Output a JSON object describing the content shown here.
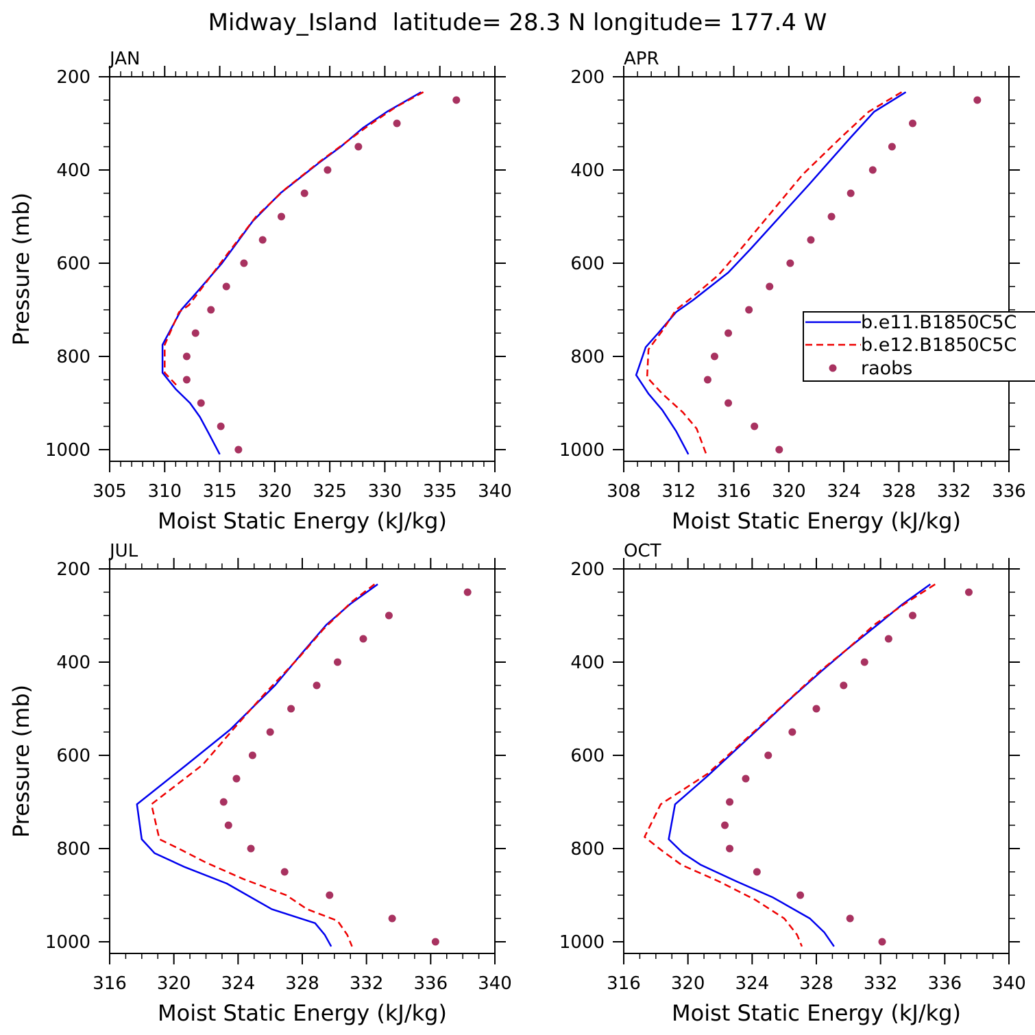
{
  "title": "Midway_Island  latitude= 28.3 N longitude= 177.4 W",
  "colors": {
    "model1": "#0000ee",
    "model2": "#ee0000",
    "obs": "#a83260"
  },
  "legend": {
    "entries": [
      "b.e11.B1850C5C",
      "b.e12.B1850C5C",
      "raobs"
    ],
    "placement": "inside-right of APR panel"
  },
  "chart_data": [
    {
      "type": "line",
      "panel": "JAN",
      "xlabel": "Moist Static Energy (kJ/kg)",
      "ylabel": "Pressure (mb)",
      "xlim": [
        305,
        340
      ],
      "xticks": [
        305,
        310,
        315,
        320,
        325,
        330,
        335,
        340
      ],
      "xminor": 1,
      "ylim": [
        1025,
        200
      ],
      "yticks": [
        200,
        400,
        600,
        800,
        1000
      ],
      "series": [
        {
          "name": "b.e11.B1850C5C",
          "style": "solid",
          "points": [
            [
              333.3,
              233
            ],
            [
              330.2,
              275
            ],
            [
              328,
              310
            ],
            [
              326,
              350
            ],
            [
              324,
              385
            ],
            [
              320.5,
              450
            ],
            [
              318,
              510
            ],
            [
              315.2,
              600
            ],
            [
              313,
              660
            ],
            [
              311.5,
              700
            ],
            [
              309.8,
              775
            ],
            [
              309.8,
              835
            ],
            [
              311,
              870
            ],
            [
              312.3,
              900
            ],
            [
              313.2,
              930
            ],
            [
              314,
              965
            ],
            [
              315,
              1010
            ]
          ]
        },
        {
          "name": "b.e12.B1850C5C",
          "style": "dashed",
          "points": [
            [
              333.5,
              233
            ],
            [
              331,
              265
            ],
            [
              328.5,
              305
            ],
            [
              326.5,
              340
            ],
            [
              324.2,
              380
            ],
            [
              321,
              440
            ],
            [
              318.3,
              500
            ],
            [
              315.7,
              580
            ],
            [
              313.8,
              640
            ],
            [
              312.2,
              690
            ],
            [
              311.3,
              705
            ],
            [
              310,
              775
            ],
            [
              310,
              835
            ],
            [
              311.2,
              865
            ]
          ]
        }
      ],
      "obs": [
        [
          336.5,
          250
        ],
        [
          331.1,
          300
        ],
        [
          327.6,
          350
        ],
        [
          324.8,
          400
        ],
        [
          322.7,
          450
        ],
        [
          320.6,
          500
        ],
        [
          318.9,
          550
        ],
        [
          317.2,
          600
        ],
        [
          315.6,
          650
        ],
        [
          314.2,
          700
        ],
        [
          312.8,
          750
        ],
        [
          312,
          800
        ],
        [
          312,
          850
        ],
        [
          313.3,
          900
        ],
        [
          315.1,
          950
        ],
        [
          316.7,
          1000
        ]
      ]
    },
    {
      "type": "line",
      "panel": "APR",
      "xlabel": "Moist Static Energy (kJ/kg)",
      "ylabel": "",
      "xlim": [
        308,
        336
      ],
      "xticks": [
        308,
        312,
        316,
        320,
        324,
        328,
        332,
        336
      ],
      "xminor": 1,
      "ylim": [
        1025,
        200
      ],
      "yticks": [
        200,
        400,
        600,
        800,
        1000
      ],
      "series": [
        {
          "name": "b.e11.B1850C5C",
          "style": "solid",
          "points": [
            [
              328.5,
              233
            ],
            [
              326.2,
              275
            ],
            [
              324.5,
              330
            ],
            [
              321.5,
              430
            ],
            [
              317.2,
              570
            ],
            [
              315.6,
              620
            ],
            [
              313,
              680
            ],
            [
              311.8,
              705
            ],
            [
              310.5,
              750
            ],
            [
              309.6,
              780
            ],
            [
              308.9,
              840
            ],
            [
              309.8,
              880
            ],
            [
              310.8,
              915
            ],
            [
              311.8,
              960
            ],
            [
              312.7,
              1010
            ]
          ]
        },
        {
          "name": "b.e12.B1850C5C",
          "style": "dashed",
          "points": [
            [
              328.2,
              233
            ],
            [
              325.8,
              275
            ],
            [
              323.8,
              330
            ],
            [
              321,
              410
            ],
            [
              316.5,
              570
            ],
            [
              314.9,
              625
            ],
            [
              312.9,
              675
            ],
            [
              311.8,
              700
            ],
            [
              310.8,
              745
            ],
            [
              309.8,
              785
            ],
            [
              309.7,
              845
            ],
            [
              310.8,
              880
            ],
            [
              312.3,
              920
            ],
            [
              313.3,
              955
            ],
            [
              314,
              1010
            ]
          ]
        }
      ],
      "obs": [
        [
          333.7,
          250
        ],
        [
          329,
          300
        ],
        [
          327.5,
          350
        ],
        [
          326.1,
          400
        ],
        [
          324.5,
          450
        ],
        [
          323.1,
          500
        ],
        [
          321.6,
          550
        ],
        [
          320.1,
          600
        ],
        [
          318.6,
          650
        ],
        [
          317.1,
          700
        ],
        [
          315.6,
          750
        ],
        [
          314.6,
          800
        ],
        [
          314.1,
          850
        ],
        [
          315.6,
          900
        ],
        [
          317.5,
          950
        ],
        [
          319.3,
          1000
        ]
      ]
    },
    {
      "type": "line",
      "panel": "JUL",
      "xlabel": "Moist Static Energy (kJ/kg)",
      "ylabel": "Pressure (mb)",
      "xlim": [
        316,
        340
      ],
      "xticks": [
        316,
        320,
        324,
        328,
        332,
        336,
        340
      ],
      "xminor": 1,
      "ylim": [
        1025,
        200
      ],
      "yticks": [
        200,
        400,
        600,
        800,
        1000
      ],
      "series": [
        {
          "name": "b.e11.B1850C5C",
          "style": "solid",
          "points": [
            [
              332.7,
              233
            ],
            [
              331,
              275
            ],
            [
              329.5,
              320
            ],
            [
              328,
              380
            ],
            [
              326.3,
              450
            ],
            [
              323.5,
              545
            ],
            [
              320.8,
              620
            ],
            [
              317.7,
              705
            ],
            [
              318,
              780
            ],
            [
              318.8,
              810
            ],
            [
              320.7,
              840
            ],
            [
              323.3,
              875
            ],
            [
              326.1,
              930
            ],
            [
              328.8,
              960
            ],
            [
              329.4,
              985
            ],
            [
              329.8,
              1010
            ]
          ]
        },
        {
          "name": "b.e12.B1850C5C",
          "style": "dashed",
          "points": [
            [
              332.5,
              233
            ],
            [
              331.1,
              270
            ],
            [
              329.3,
              330
            ],
            [
              327.8,
              390
            ],
            [
              325.6,
              470
            ],
            [
              323.8,
              540
            ],
            [
              321.8,
              620
            ],
            [
              318.6,
              705
            ],
            [
              319.1,
              780
            ],
            [
              320.3,
              800
            ],
            [
              322,
              830
            ],
            [
              324.3,
              865
            ],
            [
              327,
              900
            ],
            [
              328.3,
              930
            ],
            [
              330.2,
              955
            ],
            [
              330.8,
              985
            ],
            [
              331.1,
              1010
            ]
          ]
        }
      ],
      "obs": [
        [
          338.3,
          250
        ],
        [
          333.4,
          300
        ],
        [
          331.8,
          350
        ],
        [
          330.2,
          400
        ],
        [
          328.9,
          450
        ],
        [
          327.3,
          500
        ],
        [
          326,
          550
        ],
        [
          324.9,
          600
        ],
        [
          323.9,
          650
        ],
        [
          323.1,
          700
        ],
        [
          323.4,
          750
        ],
        [
          324.8,
          800
        ],
        [
          326.9,
          850
        ],
        [
          329.7,
          900
        ],
        [
          333.6,
          950
        ],
        [
          336.3,
          1000
        ]
      ]
    },
    {
      "type": "line",
      "panel": "OCT",
      "xlabel": "Moist Static Energy (kJ/kg)",
      "ylabel": "",
      "xlim": [
        316,
        340
      ],
      "xticks": [
        316,
        320,
        324,
        328,
        332,
        336,
        340
      ],
      "xminor": 1,
      "ylim": [
        1025,
        200
      ],
      "yticks": [
        200,
        400,
        600,
        800,
        1000
      ],
      "series": [
        {
          "name": "b.e11.B1850C5C",
          "style": "solid",
          "points": [
            [
              335.1,
              233
            ],
            [
              333.4,
              275
            ],
            [
              331.8,
              320
            ],
            [
              330,
              370
            ],
            [
              328.3,
              420
            ],
            [
              326.5,
              475
            ],
            [
              324.8,
              530
            ],
            [
              321.2,
              645
            ],
            [
              319.2,
              705
            ],
            [
              318.8,
              780
            ],
            [
              319.7,
              810
            ],
            [
              320.8,
              835
            ],
            [
              323,
              870
            ],
            [
              325.3,
              905
            ],
            [
              327.6,
              950
            ],
            [
              328.5,
              980
            ],
            [
              329.1,
              1010
            ]
          ]
        },
        {
          "name": "b.e12.B1850C5C",
          "style": "dashed",
          "points": [
            [
              335.4,
              233
            ],
            [
              333.5,
              275
            ],
            [
              331.6,
              320
            ],
            [
              330,
              370
            ],
            [
              328.2,
              420
            ],
            [
              326,
              490
            ],
            [
              323.3,
              575
            ],
            [
              321.2,
              640
            ],
            [
              318.3,
              705
            ],
            [
              317.3,
              775
            ],
            [
              318.4,
              805
            ],
            [
              319.6,
              835
            ],
            [
              321.9,
              870
            ],
            [
              324.2,
              910
            ],
            [
              326,
              950
            ],
            [
              326.8,
              985
            ],
            [
              327.1,
              1010
            ]
          ]
        }
      ],
      "obs": [
        [
          337.5,
          250
        ],
        [
          334,
          300
        ],
        [
          332.5,
          350
        ],
        [
          331,
          400
        ],
        [
          329.7,
          450
        ],
        [
          328,
          500
        ],
        [
          326.5,
          550
        ],
        [
          325,
          600
        ],
        [
          323.6,
          650
        ],
        [
          322.6,
          700
        ],
        [
          322.3,
          750
        ],
        [
          322.6,
          800
        ],
        [
          324.3,
          850
        ],
        [
          327,
          900
        ],
        [
          330.1,
          950
        ],
        [
          332.1,
          1000
        ]
      ]
    }
  ]
}
